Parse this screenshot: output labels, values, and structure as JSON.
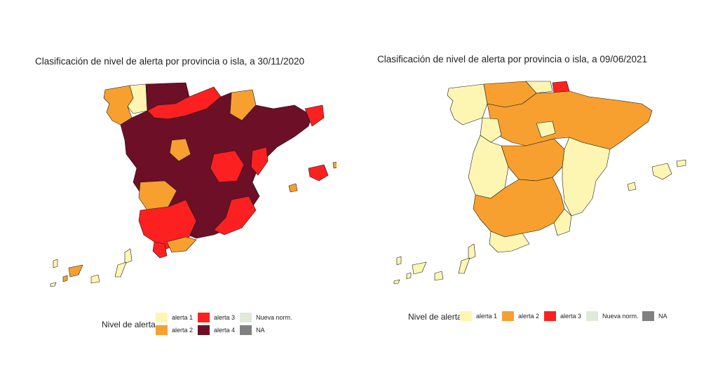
{
  "colors": {
    "alerta_1": "#fdf6b2",
    "alerta_2": "#f7a030",
    "alerta_3": "#fc2020",
    "alerta_4": "#6d0f26",
    "nueva_norm": "#e1ead7",
    "na": "#808080",
    "border": "#1a1a1a"
  },
  "maps": [
    {
      "title": "Clasificación de nivel de alerta por provincia o isla, a 30/11/2020",
      "legend": {
        "title": "Nivel de alerta",
        "items": [
          {
            "label": "alerta 1",
            "level": "alerta_1"
          },
          {
            "label": "alerta 2",
            "level": "alerta_2"
          },
          {
            "label": "alerta 3",
            "level": "alerta_3"
          },
          {
            "label": "alerta 4",
            "level": "alerta_4"
          },
          {
            "label": "Nueva norm.",
            "level": "nueva_norm"
          },
          {
            "label": "NA",
            "level": "na"
          }
        ]
      }
    },
    {
      "title": "Clasificación de nivel de alerta por provincia o isla, a 09/06/2021",
      "legend": {
        "title": "Nivel de alerta",
        "items": [
          {
            "label": "alerta 1",
            "level": "alerta_1"
          },
          {
            "label": "alerta 2",
            "level": "alerta_2"
          },
          {
            "label": "alerta 3",
            "level": "alerta_3"
          },
          {
            "label": "Nueva norm.",
            "level": "nueva_norm"
          },
          {
            "label": "NA",
            "level": "na"
          }
        ]
      }
    }
  ]
}
